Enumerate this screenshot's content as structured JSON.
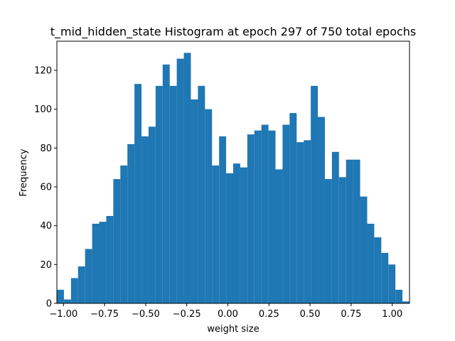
{
  "chart_data": {
    "type": "bar",
    "title": "t_mid_hidden_state Histogram at epoch 297 of 750 total epochs",
    "xlabel": "weight size",
    "ylabel": "Frequency",
    "xlim": [
      -1.04,
      1.105
    ],
    "ylim": [
      0,
      135
    ],
    "bin_start": -1.04,
    "bin_width": 0.0429,
    "values": [
      7,
      2,
      13,
      19,
      28,
      41,
      42,
      45,
      64,
      71,
      82,
      113,
      86,
      91,
      112,
      123,
      112,
      126,
      129,
      105,
      112,
      100,
      71,
      86,
      67,
      72,
      70,
      87,
      89,
      92,
      89,
      69,
      92,
      98,
      83,
      84,
      112,
      96,
      64,
      78,
      65,
      74,
      74,
      55,
      41,
      34,
      26,
      20,
      7,
      1
    ],
    "x_ticks": [
      -1.0,
      -0.75,
      -0.5,
      -0.25,
      0.0,
      0.25,
      0.5,
      0.75,
      1.0
    ],
    "x_tick_labels": [
      "−1.00",
      "−0.75",
      "−0.50",
      "−0.25",
      "0.00",
      "0.25",
      "0.50",
      "0.75",
      "1.00"
    ],
    "y_ticks": [
      0,
      20,
      40,
      60,
      80,
      100,
      120
    ],
    "y_tick_labels": [
      "0",
      "20",
      "40",
      "60",
      "80",
      "100",
      "120"
    ],
    "bar_color": "#1f77b4",
    "grid": false,
    "legend": "none"
  }
}
